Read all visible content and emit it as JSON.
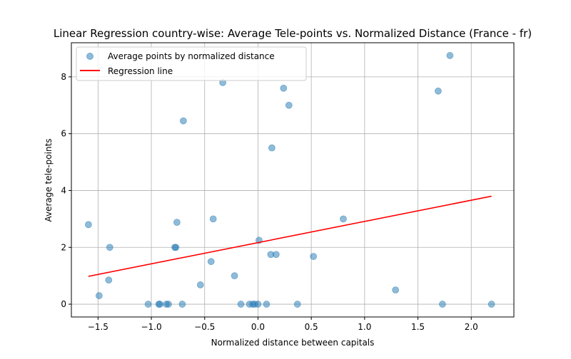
{
  "chart_data": {
    "type": "scatter",
    "title": "Linear Regression country-wise: Average Tele-points vs. Normalized Distance (France - fr)",
    "xlabel": "Normalized distance between capitals",
    "ylabel": "Average tele-points",
    "xlim": [
      -1.75,
      2.4
    ],
    "ylim": [
      -0.45,
      9.2
    ],
    "xticks": [
      -1.5,
      -1.0,
      -0.5,
      0.0,
      0.5,
      1.0,
      1.5,
      2.0
    ],
    "xtick_labels": [
      "−1.5",
      "−1.0",
      "−0.5",
      "0.0",
      "0.5",
      "1.0",
      "1.5",
      "2.0"
    ],
    "yticks": [
      0,
      2,
      4,
      6,
      8
    ],
    "ytick_labels": [
      "0",
      "2",
      "4",
      "6",
      "8"
    ],
    "grid": true,
    "legend_position": "top-left",
    "series": [
      {
        "name": "Average points by normalized distance",
        "kind": "scatter",
        "color": "#1f77b4",
        "points": [
          {
            "x": -1.59,
            "y": 2.8
          },
          {
            "x": -1.49,
            "y": 0.3
          },
          {
            "x": -1.4,
            "y": 0.85
          },
          {
            "x": -1.39,
            "y": 2.0
          },
          {
            "x": -1.03,
            "y": 0.0
          },
          {
            "x": -0.93,
            "y": 0.0
          },
          {
            "x": -0.92,
            "y": 0.0
          },
          {
            "x": -0.86,
            "y": 0.0
          },
          {
            "x": -0.84,
            "y": 0.0
          },
          {
            "x": -0.78,
            "y": 2.0
          },
          {
            "x": -0.77,
            "y": 2.0
          },
          {
            "x": -0.76,
            "y": 2.88
          },
          {
            "x": -0.71,
            "y": 0.0
          },
          {
            "x": -0.7,
            "y": 6.45
          },
          {
            "x": -0.54,
            "y": 0.68
          },
          {
            "x": -0.44,
            "y": 1.5
          },
          {
            "x": -0.42,
            "y": 3.0
          },
          {
            "x": -0.33,
            "y": 7.8
          },
          {
            "x": -0.22,
            "y": 1.0
          },
          {
            "x": -0.16,
            "y": 0.0
          },
          {
            "x": -0.08,
            "y": 0.0
          },
          {
            "x": -0.05,
            "y": 0.0
          },
          {
            "x": -0.03,
            "y": 0.0
          },
          {
            "x": 0.0,
            "y": 0.0
          },
          {
            "x": 0.01,
            "y": 2.25
          },
          {
            "x": 0.08,
            "y": 0.0
          },
          {
            "x": 0.12,
            "y": 1.75
          },
          {
            "x": 0.13,
            "y": 5.5
          },
          {
            "x": 0.17,
            "y": 1.75
          },
          {
            "x": 0.24,
            "y": 7.6
          },
          {
            "x": 0.29,
            "y": 7.0
          },
          {
            "x": 0.37,
            "y": 0.0
          },
          {
            "x": 0.52,
            "y": 1.68
          },
          {
            "x": 0.8,
            "y": 3.0
          },
          {
            "x": 1.29,
            "y": 0.5
          },
          {
            "x": 1.69,
            "y": 7.5
          },
          {
            "x": 1.73,
            "y": 0.0
          },
          {
            "x": 1.8,
            "y": 8.75
          },
          {
            "x": 2.19,
            "y": 0.0
          }
        ]
      },
      {
        "name": "Regression line",
        "kind": "line",
        "color": "#ff0000",
        "points": [
          {
            "x": -1.59,
            "y": 0.98
          },
          {
            "x": 2.19,
            "y": 3.8
          }
        ]
      }
    ]
  }
}
